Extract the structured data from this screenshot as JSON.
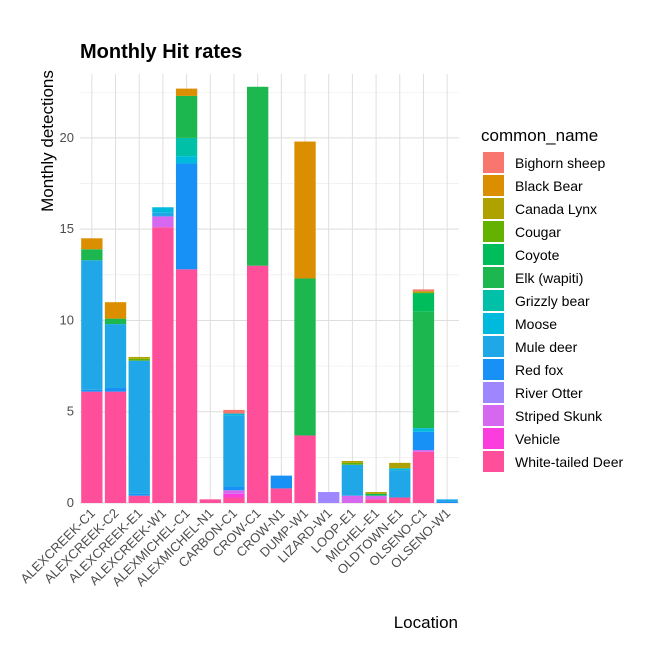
{
  "chart_data": {
    "type": "bar",
    "stacked": true,
    "title": "Monthly Hit rates",
    "xlabel": "Location",
    "ylabel": "Monthly detections",
    "ylim": [
      0,
      23.5
    ],
    "yticks": [
      0,
      5,
      10,
      15,
      20
    ],
    "grid": true,
    "legend_title": "common_name",
    "legend_position": "right",
    "categories": [
      "ALEXCREEK-C1",
      "ALEXCREEK-C2",
      "ALEXCREEK-E1",
      "ALEXCREEK-W1",
      "ALEXMICHEL-C1",
      "ALEXMICHEL-N1",
      "CARBON-C1",
      "CROW-C1",
      "CROW-N1",
      "DUMP-W1",
      "LIZARD-W1",
      "LOOP-E1",
      "MICHEL-E1",
      "OLDTOWN-E1",
      "OLSENO-C1",
      "OLSENO-W1"
    ],
    "series": [
      {
        "name": "Bighorn sheep",
        "color": "#F8766D",
        "values": [
          0,
          0,
          0,
          0,
          0,
          0,
          0.2,
          0,
          0,
          0,
          0,
          0,
          0,
          0,
          0.1,
          0
        ]
      },
      {
        "name": "Black Bear",
        "color": "#DB8E00",
        "values": [
          0.6,
          0.9,
          0,
          0,
          0.4,
          0,
          0,
          0,
          0,
          7.5,
          0,
          0,
          0,
          0,
          0,
          0
        ]
      },
      {
        "name": "Canada Lynx",
        "color": "#AEA200",
        "values": [
          0,
          0,
          0.1,
          0,
          0,
          0,
          0,
          0,
          0,
          0,
          0,
          0.1,
          0.1,
          0.3,
          0.1,
          0
        ]
      },
      {
        "name": "Cougar",
        "color": "#64B200",
        "values": [
          0,
          0,
          0.1,
          0,
          0,
          0,
          0,
          0,
          0,
          0,
          0,
          0.1,
          0,
          0,
          0,
          0
        ]
      },
      {
        "name": "Coyote",
        "color": "#00BD5C",
        "values": [
          0,
          0,
          0,
          0,
          0,
          0,
          0,
          0,
          0,
          0,
          0,
          0,
          0.1,
          0,
          1.0,
          0
        ]
      },
      {
        "name": "Elk (wapiti)",
        "color": "#1DB74F",
        "values": [
          0.6,
          0.3,
          0,
          0,
          2.3,
          0,
          0,
          9.8,
          0,
          8.6,
          0,
          0,
          0,
          0,
          6.4,
          0
        ]
      },
      {
        "name": "Grizzly bear",
        "color": "#00C1A7",
        "values": [
          0,
          0,
          0,
          0,
          1.0,
          0,
          0,
          0,
          0,
          0,
          0,
          0,
          0,
          0,
          0,
          0
        ]
      },
      {
        "name": "Moose",
        "color": "#00BADE",
        "values": [
          0,
          0,
          0,
          0.3,
          0.4,
          0,
          0.1,
          0,
          0,
          0,
          0,
          0,
          0,
          0.1,
          0.2,
          0
        ]
      },
      {
        "name": "Mule deer",
        "color": "#1FA7E8",
        "values": [
          7.1,
          3.5,
          7.3,
          0.2,
          0,
          0,
          3.9,
          0,
          0,
          0,
          0,
          1.7,
          0,
          1.5,
          0,
          0.1
        ]
      },
      {
        "name": "Red fox",
        "color": "#1791F5",
        "values": [
          0.1,
          0.2,
          0.1,
          0,
          5.8,
          0,
          0.2,
          0,
          0.7,
          0,
          0,
          0,
          0,
          0,
          1.0,
          0.1
        ]
      },
      {
        "name": "River Otter",
        "color": "#9E86FF",
        "values": [
          0,
          0,
          0,
          0,
          0,
          0,
          0,
          0,
          0,
          0,
          0.6,
          0,
          0,
          0,
          0,
          0
        ]
      },
      {
        "name": "Striped Skunk",
        "color": "#D668F0",
        "values": [
          0,
          0,
          0,
          0.6,
          0,
          0,
          0.2,
          0,
          0,
          0,
          0,
          0.4,
          0.2,
          0,
          0.1,
          0
        ]
      },
      {
        "name": "Vehicle",
        "color": "#FA3DDC",
        "values": [
          0,
          0,
          0,
          0,
          0,
          0,
          0.2,
          0,
          0,
          0,
          0,
          0,
          0,
          0,
          0,
          0
        ]
      },
      {
        "name": "White-tailed Deer",
        "color": "#FF4F9A",
        "values": [
          6.1,
          6.1,
          0.4,
          15.1,
          12.8,
          0.2,
          0.3,
          13.0,
          0.8,
          3.7,
          0,
          0,
          0.2,
          0.3,
          2.8,
          0
        ]
      }
    ]
  }
}
